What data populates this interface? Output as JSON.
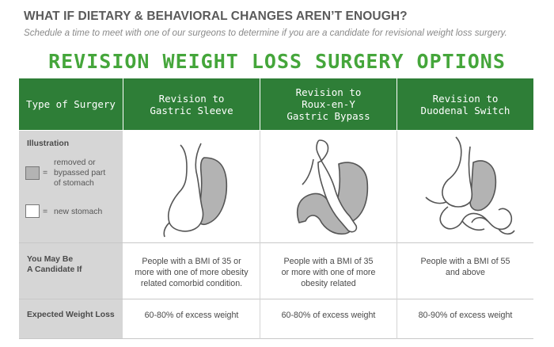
{
  "header": {
    "heading": "WHAT IF DIETARY & BEHAVIORAL CHANGES AREN’T ENOUGH?",
    "subheading": "Schedule a time to meet with one of our surgeons to determine if you are a candidate for revisional weight loss surgery.",
    "title": "REVISION WEIGHT LOSS SURGERY OPTIONS"
  },
  "table": {
    "type_header": "Type of Surgery",
    "columns": [
      {
        "name_line1": "Revision to",
        "name_line2": "Gastric Sleeve",
        "name_line3": "",
        "candidate_line1": "People with a BMI of 35 or",
        "candidate_line2": "more with one of more obesity",
        "candidate_line3": "related comorbid condition.",
        "weight_loss": "60-80% of excess weight"
      },
      {
        "name_line1": "Revision to",
        "name_line2": "Roux-en-Y",
        "name_line3": "Gastric Bypass",
        "candidate_line1": "People with a BMI of 35",
        "candidate_line2": "or more with one of more",
        "candidate_line3": "obesity related",
        "weight_loss": "60-80% of excess weight"
      },
      {
        "name_line1": "Revision to",
        "name_line2": "Duodenal Switch",
        "name_line3": "",
        "candidate_line1": "People with a BMI of 55",
        "candidate_line2": "and above",
        "candidate_line3": "",
        "weight_loss": "80-90% of excess weight"
      }
    ],
    "rows": {
      "illustration": "Illustration",
      "legend_removed_line1": "removed or",
      "legend_removed_line2": "bypassed part",
      "legend_removed_line3": "of stomach",
      "legend_new": "new stomach",
      "equals": "=",
      "candidate_line1": "You May Be",
      "candidate_line2": "A Candidate If",
      "weight_loss": "Expected Weight Loss"
    }
  },
  "colors": {
    "header_green": "#2e7e37",
    "title_green": "#45a63b",
    "label_gray": "#d6d6d6",
    "removed_fill": "#b3b3b3"
  }
}
